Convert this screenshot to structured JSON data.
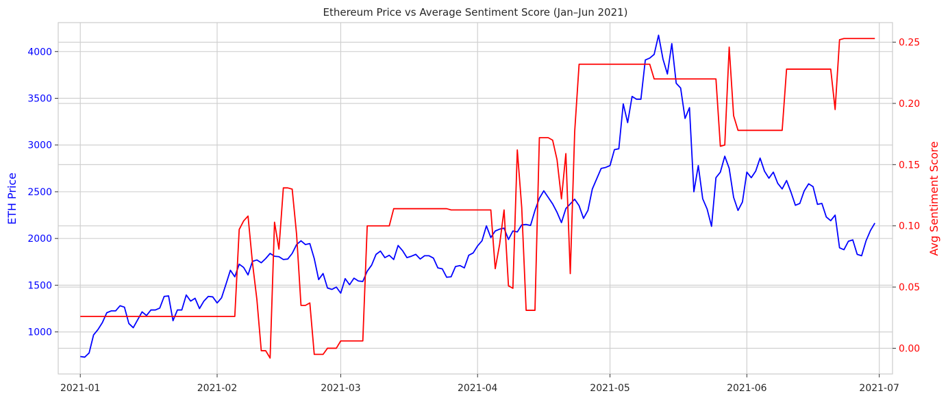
{
  "chart_data": {
    "type": "line",
    "title": "Ethereum Price vs Average Sentiment Score (Jan–Jun 2021)",
    "ylabel_left": "ETH Price",
    "ylabel_right": "Avg Sentiment Score",
    "xlabel": "",
    "x_start": "2021-01-01",
    "xlim": [
      "2020-12-27",
      "2021-07-04"
    ],
    "ylim_left": [
      550,
      4310
    ],
    "ylim_right": [
      -0.021,
      0.266
    ],
    "x_ticks": [
      "2021-01",
      "2021-02",
      "2021-03",
      "2021-04",
      "2021-05",
      "2021-06",
      "2021-07"
    ],
    "y_ticks_left": [
      1000,
      1500,
      2000,
      2500,
      3000,
      3500,
      4000
    ],
    "y_ticks_right": [
      "0.00",
      "0.05",
      "0.10",
      "0.15",
      "0.20",
      "0.25"
    ],
    "colors": {
      "price": "#0000ff",
      "sentiment": "#ff0000"
    },
    "grid": true,
    "series": [
      {
        "name": "ETH Price",
        "axis": "left",
        "points": [
          [
            "2021-01-01",
            737
          ],
          [
            "2021-01-02",
            730
          ],
          [
            "2021-01-03",
            775
          ],
          [
            "2021-01-04",
            967
          ],
          [
            "2021-01-05",
            1025
          ],
          [
            "2021-01-06",
            1100
          ],
          [
            "2021-01-07",
            1205
          ],
          [
            "2021-01-08",
            1225
          ],
          [
            "2021-01-09",
            1225
          ],
          [
            "2021-01-10",
            1280
          ],
          [
            "2021-01-11",
            1265
          ],
          [
            "2021-01-12",
            1090
          ],
          [
            "2021-01-13",
            1045
          ],
          [
            "2021-01-14",
            1130
          ],
          [
            "2021-01-15",
            1215
          ],
          [
            "2021-01-16",
            1175
          ],
          [
            "2021-01-17",
            1235
          ],
          [
            "2021-01-18",
            1235
          ],
          [
            "2021-01-19",
            1255
          ],
          [
            "2021-01-20",
            1380
          ],
          [
            "2021-01-21",
            1385
          ],
          [
            "2021-01-22",
            1120
          ],
          [
            "2021-01-23",
            1235
          ],
          [
            "2021-01-24",
            1235
          ],
          [
            "2021-01-25",
            1395
          ],
          [
            "2021-01-26",
            1330
          ],
          [
            "2021-01-27",
            1360
          ],
          [
            "2021-01-28",
            1250
          ],
          [
            "2021-01-29",
            1330
          ],
          [
            "2021-01-30",
            1380
          ],
          [
            "2021-01-31",
            1375
          ],
          [
            "2021-02-01",
            1310
          ],
          [
            "2021-02-02",
            1365
          ],
          [
            "2021-02-03",
            1510
          ],
          [
            "2021-02-04",
            1660
          ],
          [
            "2021-02-05",
            1590
          ],
          [
            "2021-02-06",
            1725
          ],
          [
            "2021-02-07",
            1690
          ],
          [
            "2021-02-08",
            1610
          ],
          [
            "2021-02-09",
            1755
          ],
          [
            "2021-02-10",
            1770
          ],
          [
            "2021-02-11",
            1740
          ],
          [
            "2021-02-12",
            1785
          ],
          [
            "2021-02-13",
            1840
          ],
          [
            "2021-02-14",
            1810
          ],
          [
            "2021-02-15",
            1805
          ],
          [
            "2021-02-16",
            1775
          ],
          [
            "2021-02-17",
            1780
          ],
          [
            "2021-02-18",
            1840
          ],
          [
            "2021-02-19",
            1935
          ],
          [
            "2021-02-20",
            1975
          ],
          [
            "2021-02-21",
            1935
          ],
          [
            "2021-02-22",
            1945
          ],
          [
            "2021-02-23",
            1785
          ],
          [
            "2021-02-24",
            1560
          ],
          [
            "2021-02-25",
            1625
          ],
          [
            "2021-02-26",
            1470
          ],
          [
            "2021-02-27",
            1455
          ],
          [
            "2021-02-28",
            1480
          ],
          [
            "2021-03-01",
            1415
          ],
          [
            "2021-03-02",
            1570
          ],
          [
            "2021-03-03",
            1505
          ],
          [
            "2021-03-04",
            1575
          ],
          [
            "2021-03-05",
            1545
          ],
          [
            "2021-03-06",
            1540
          ],
          [
            "2021-03-07",
            1650
          ],
          [
            "2021-03-08",
            1715
          ],
          [
            "2021-03-09",
            1830
          ],
          [
            "2021-03-10",
            1865
          ],
          [
            "2021-03-11",
            1795
          ],
          [
            "2021-03-12",
            1820
          ],
          [
            "2021-03-13",
            1775
          ],
          [
            "2021-03-14",
            1925
          ],
          [
            "2021-03-15",
            1870
          ],
          [
            "2021-03-16",
            1795
          ],
          [
            "2021-03-17",
            1810
          ],
          [
            "2021-03-18",
            1830
          ],
          [
            "2021-03-19",
            1780
          ],
          [
            "2021-03-20",
            1815
          ],
          [
            "2021-03-21",
            1815
          ],
          [
            "2021-03-22",
            1790
          ],
          [
            "2021-03-23",
            1685
          ],
          [
            "2021-03-24",
            1675
          ],
          [
            "2021-03-25",
            1585
          ],
          [
            "2021-03-26",
            1590
          ],
          [
            "2021-03-27",
            1700
          ],
          [
            "2021-03-28",
            1710
          ],
          [
            "2021-03-29",
            1685
          ],
          [
            "2021-03-30",
            1820
          ],
          [
            "2021-03-31",
            1845
          ],
          [
            "2021-04-01",
            1920
          ],
          [
            "2021-04-02",
            1975
          ],
          [
            "2021-04-03",
            2135
          ],
          [
            "2021-04-04",
            2010
          ],
          [
            "2021-04-05",
            2080
          ],
          [
            "2021-04-06",
            2100
          ],
          [
            "2021-04-07",
            2110
          ],
          [
            "2021-04-08",
            1990
          ],
          [
            "2021-04-09",
            2080
          ],
          [
            "2021-04-10",
            2070
          ],
          [
            "2021-04-11",
            2145
          ],
          [
            "2021-04-12",
            2150
          ],
          [
            "2021-04-13",
            2140
          ],
          [
            "2021-04-14",
            2300
          ],
          [
            "2021-04-15",
            2430
          ],
          [
            "2021-04-16",
            2510
          ],
          [
            "2021-04-17",
            2440
          ],
          [
            "2021-04-18",
            2370
          ],
          [
            "2021-04-19",
            2280
          ],
          [
            "2021-04-20",
            2170
          ],
          [
            "2021-04-21",
            2320
          ],
          [
            "2021-04-22",
            2370
          ],
          [
            "2021-04-23",
            2420
          ],
          [
            "2021-04-24",
            2350
          ],
          [
            "2021-04-25",
            2215
          ],
          [
            "2021-04-26",
            2300
          ],
          [
            "2021-04-27",
            2530
          ],
          [
            "2021-04-28",
            2640
          ],
          [
            "2021-04-29",
            2750
          ],
          [
            "2021-04-30",
            2760
          ],
          [
            "2021-05-01",
            2780
          ],
          [
            "2021-05-02",
            2950
          ],
          [
            "2021-05-03",
            2960
          ],
          [
            "2021-05-04",
            3440
          ],
          [
            "2021-05-05",
            3240
          ],
          [
            "2021-05-06",
            3520
          ],
          [
            "2021-05-07",
            3490
          ],
          [
            "2021-05-08",
            3490
          ],
          [
            "2021-05-09",
            3910
          ],
          [
            "2021-05-10",
            3930
          ],
          [
            "2021-05-11",
            3970
          ],
          [
            "2021-05-12",
            4175
          ],
          [
            "2021-05-13",
            3920
          ],
          [
            "2021-05-14",
            3760
          ],
          [
            "2021-05-15",
            4085
          ],
          [
            "2021-05-16",
            3660
          ],
          [
            "2021-05-17",
            3610
          ],
          [
            "2021-05-18",
            3285
          ],
          [
            "2021-05-19",
            3400
          ],
          [
            "2021-05-20",
            2500
          ],
          [
            "2021-05-21",
            2780
          ],
          [
            "2021-05-22",
            2425
          ],
          [
            "2021-05-23",
            2315
          ],
          [
            "2021-05-24",
            2130
          ],
          [
            "2021-05-25",
            2650
          ],
          [
            "2021-05-26",
            2710
          ],
          [
            "2021-05-27",
            2880
          ],
          [
            "2021-05-28",
            2750
          ],
          [
            "2021-05-29",
            2440
          ],
          [
            "2021-05-30",
            2300
          ],
          [
            "2021-05-31",
            2390
          ],
          [
            "2021-06-01",
            2710
          ],
          [
            "2021-06-02",
            2650
          ],
          [
            "2021-06-03",
            2720
          ],
          [
            "2021-06-04",
            2860
          ],
          [
            "2021-06-05",
            2720
          ],
          [
            "2021-06-06",
            2645
          ],
          [
            "2021-06-07",
            2710
          ],
          [
            "2021-06-08",
            2590
          ],
          [
            "2021-06-09",
            2530
          ],
          [
            "2021-06-10",
            2620
          ],
          [
            "2021-06-11",
            2495
          ],
          [
            "2021-06-12",
            2355
          ],
          [
            "2021-06-13",
            2375
          ],
          [
            "2021-06-14",
            2510
          ],
          [
            "2021-06-15",
            2585
          ],
          [
            "2021-06-16",
            2555
          ],
          [
            "2021-06-17",
            2365
          ],
          [
            "2021-06-18",
            2375
          ],
          [
            "2021-06-19",
            2230
          ],
          [
            "2021-06-20",
            2190
          ],
          [
            "2021-06-21",
            2250
          ],
          [
            "2021-06-22",
            1900
          ],
          [
            "2021-06-23",
            1880
          ],
          [
            "2021-06-24",
            1970
          ],
          [
            "2021-06-25",
            1985
          ],
          [
            "2021-06-26",
            1830
          ],
          [
            "2021-06-27",
            1815
          ],
          [
            "2021-06-28",
            1975
          ],
          [
            "2021-06-29",
            2085
          ],
          [
            "2021-06-30",
            2165
          ]
        ]
      },
      {
        "name": "Avg Sentiment Score",
        "axis": "right",
        "points": [
          [
            "2021-01-01",
            0.026
          ],
          [
            "2021-02-05",
            0.026
          ],
          [
            "2021-02-06",
            0.097
          ],
          [
            "2021-02-07",
            0.104
          ],
          [
            "2021-02-08",
            0.108
          ],
          [
            "2021-02-09",
            0.07
          ],
          [
            "2021-02-10",
            0.04
          ],
          [
            "2021-02-11",
            -0.002
          ],
          [
            "2021-02-12",
            -0.002
          ],
          [
            "2021-02-13",
            -0.008
          ],
          [
            "2021-02-14",
            0.103
          ],
          [
            "2021-02-15",
            0.081
          ],
          [
            "2021-02-16",
            0.131
          ],
          [
            "2021-02-17",
            0.131
          ],
          [
            "2021-02-18",
            0.13
          ],
          [
            "2021-02-19",
            0.093
          ],
          [
            "2021-02-20",
            0.035
          ],
          [
            "2021-02-21",
            0.035
          ],
          [
            "2021-02-22",
            0.037
          ],
          [
            "2021-02-23",
            -0.005
          ],
          [
            "2021-02-24",
            -0.005
          ],
          [
            "2021-02-25",
            -0.005
          ],
          [
            "2021-02-26",
            0.0
          ],
          [
            "2021-02-27",
            0.0
          ],
          [
            "2021-02-28",
            0.0
          ],
          [
            "2021-03-01",
            0.006
          ],
          [
            "2021-03-06",
            0.006
          ],
          [
            "2021-03-07",
            0.1
          ],
          [
            "2021-03-12",
            0.1
          ],
          [
            "2021-03-13",
            0.114
          ],
          [
            "2021-03-25",
            0.114
          ],
          [
            "2021-03-26",
            0.113
          ],
          [
            "2021-04-04",
            0.113
          ],
          [
            "2021-04-05",
            0.065
          ],
          [
            "2021-04-06",
            0.085
          ],
          [
            "2021-04-07",
            0.113
          ],
          [
            "2021-04-08",
            0.051
          ],
          [
            "2021-04-09",
            0.049
          ],
          [
            "2021-04-10",
            0.162
          ],
          [
            "2021-04-11",
            0.115
          ],
          [
            "2021-04-12",
            0.031
          ],
          [
            "2021-04-13",
            0.031
          ],
          [
            "2021-04-14",
            0.031
          ],
          [
            "2021-04-15",
            0.172
          ],
          [
            "2021-04-16",
            0.172
          ],
          [
            "2021-04-17",
            0.172
          ],
          [
            "2021-04-18",
            0.17
          ],
          [
            "2021-04-19",
            0.154
          ],
          [
            "2021-04-20",
            0.122
          ],
          [
            "2021-04-21",
            0.159
          ],
          [
            "2021-04-22",
            0.061
          ],
          [
            "2021-04-23",
            0.177
          ],
          [
            "2021-04-24",
            0.232
          ],
          [
            "2021-05-09",
            0.232
          ],
          [
            "2021-05-10",
            0.232
          ],
          [
            "2021-05-11",
            0.22
          ],
          [
            "2021-05-25",
            0.22
          ],
          [
            "2021-05-26",
            0.165
          ],
          [
            "2021-05-27",
            0.166
          ],
          [
            "2021-05-28",
            0.246
          ],
          [
            "2021-05-29",
            0.19
          ],
          [
            "2021-05-30",
            0.178
          ],
          [
            "2021-06-09",
            0.178
          ],
          [
            "2021-06-10",
            0.228
          ],
          [
            "2021-06-20",
            0.228
          ],
          [
            "2021-06-21",
            0.195
          ],
          [
            "2021-06-22",
            0.252
          ],
          [
            "2021-06-23",
            0.253
          ],
          [
            "2021-06-30",
            0.253
          ]
        ]
      }
    ]
  }
}
